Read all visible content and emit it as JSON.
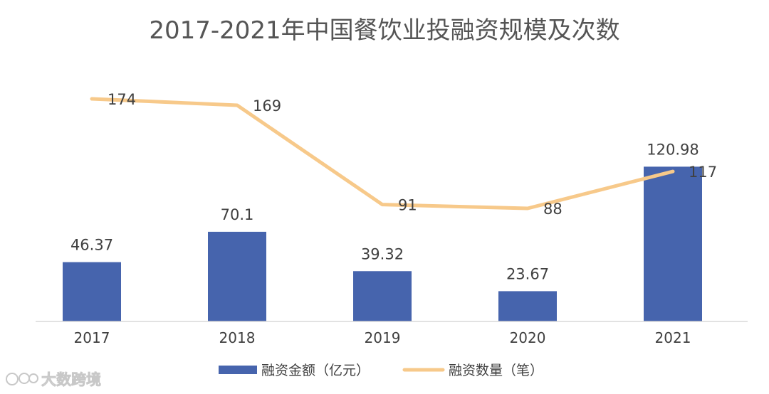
{
  "chart_data": {
    "type": "bar",
    "title": "2017-2021年中国餐饮业投融资规模及次数",
    "categories": [
      "2017",
      "2018",
      "2019",
      "2020",
      "2021"
    ],
    "series": [
      {
        "name": "融资金额（亿元）",
        "type": "bar",
        "color": "#4664ad",
        "values": [
          46.37,
          70.1,
          39.32,
          23.67,
          120.98
        ]
      },
      {
        "name": "融资数量（笔）",
        "type": "line",
        "color": "#f7c98a",
        "values": [
          174,
          169,
          91,
          88,
          117
        ]
      }
    ],
    "legend_position": "bottom",
    "gridlines": false
  },
  "watermark": {
    "text": "大数跨境",
    "icon": "logo-icon"
  }
}
